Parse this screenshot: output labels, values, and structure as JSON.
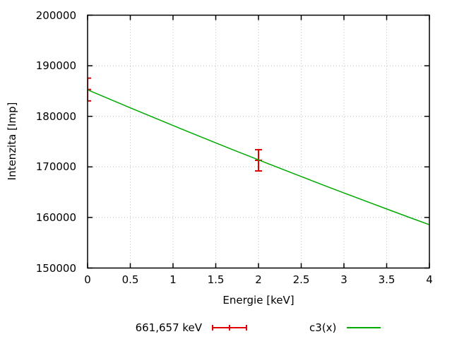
{
  "background_color": "#ffffff",
  "chart_data": {
    "type": "line",
    "title": "",
    "xlabel": "Energie [keV]",
    "ylabel": "Intenzita [Imp]",
    "xlim": [
      0,
      4
    ],
    "ylim": [
      150000,
      200000
    ],
    "xticks": [
      0,
      0.5,
      1,
      1.5,
      2,
      2.5,
      3,
      3.5,
      4
    ],
    "xtick_labels": [
      "0",
      "0.5",
      "1",
      "1.5",
      "2",
      "2.5",
      "3",
      "3.5",
      "4"
    ],
    "yticks": [
      150000,
      160000,
      170000,
      180000,
      190000,
      200000
    ],
    "ytick_labels": [
      "150000",
      "160000",
      "170000",
      "180000",
      "190000",
      "200000"
    ],
    "grid": true,
    "axis_color": "#000000",
    "grid_color": "#b8b8b8",
    "legend_position": "bottom-center",
    "series": [
      {
        "name": "661,657 keV",
        "type": "errorbars",
        "color": "#e10000",
        "points": [
          {
            "x": 0,
            "y": 185300,
            "yerr": 2250
          },
          {
            "x": 2,
            "y": 171300,
            "yerr": 2100
          }
        ]
      },
      {
        "name": "c3(x)",
        "type": "line",
        "color": "#00aa00",
        "x": [
          0,
          0.25,
          0.5,
          0.75,
          1,
          1.25,
          1.5,
          1.75,
          2,
          2.25,
          2.5,
          2.75,
          3,
          3.25,
          3.5,
          3.75,
          4
        ],
        "y": [
          185250,
          183460,
          181680,
          179930,
          178180,
          176460,
          174750,
          173060,
          171390,
          169730,
          168090,
          166460,
          164850,
          163260,
          161680,
          160110,
          158560
        ]
      }
    ]
  }
}
